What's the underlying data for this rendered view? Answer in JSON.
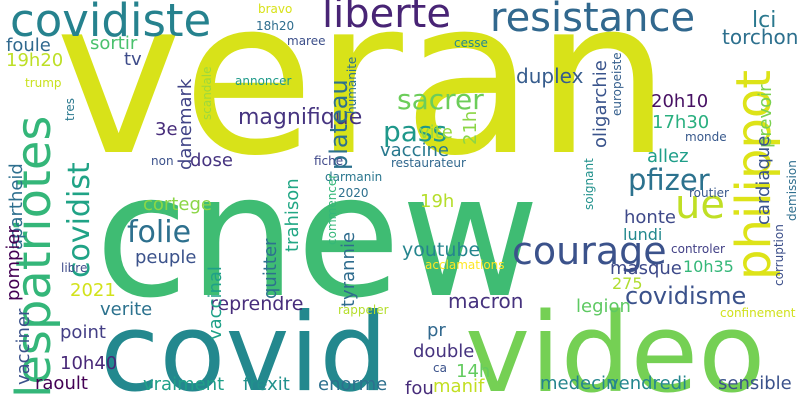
{
  "words": [
    {
      "text": "veran",
      "color": "#d8e219"
    },
    {
      "text": "cnew",
      "color": "#3fbc73"
    },
    {
      "text": "covid",
      "color": "#23888e"
    },
    {
      "text": "video",
      "color": "#75d054"
    },
    {
      "text": "covidiste",
      "color": "#26828e"
    },
    {
      "text": "liberte",
      "color": "#482475"
    },
    {
      "text": "resistance",
      "color": "#31688e"
    },
    {
      "text": "lespatriotes",
      "color": "#34b679"
    },
    {
      "text": "philippot",
      "color": "#dde318"
    },
    {
      "text": "ue",
      "color": "#c0df25"
    },
    {
      "text": "courage",
      "color": "#3b528b"
    },
    {
      "text": "covidist",
      "color": "#20a386"
    },
    {
      "text": "folie",
      "color": "#2d708e"
    },
    {
      "text": "pfizer",
      "color": "#2c728e"
    },
    {
      "text": "pass",
      "color": "#1f988b"
    },
    {
      "text": "sacrer",
      "color": "#6ccd5a"
    },
    {
      "text": "covidisme",
      "color": "#3b528b"
    },
    {
      "text": "magnifique",
      "color": "#463480"
    },
    {
      "text": "macron",
      "color": "#46327e"
    },
    {
      "text": "plateau",
      "color": "#2c718e"
    },
    {
      "text": "lci",
      "color": "#2a788e"
    },
    {
      "text": "torchon",
      "color": "#2d708e"
    },
    {
      "text": "duplex",
      "color": "#365c8d"
    },
    {
      "text": "20h10",
      "color": "#471063"
    },
    {
      "text": "19h",
      "color": "#b5de2b"
    },
    {
      "text": "reprendre",
      "color": "#472d7b"
    },
    {
      "text": "youtube",
      "color": "#25858e"
    },
    {
      "text": "tyrannie",
      "color": "#2f6c8e"
    },
    {
      "text": "vaccine",
      "color": "#29798e"
    },
    {
      "text": "foule",
      "color": "#30698e"
    },
    {
      "text": "sortir",
      "color": "#4ac16d"
    },
    {
      "text": "tv",
      "color": "#3e4c8a"
    },
    {
      "text": "19h20",
      "color": "#bddf26"
    },
    {
      "text": "danemark",
      "color": "#414487"
    },
    {
      "text": "apartheid",
      "color": "#2e6f8e"
    },
    {
      "text": "vite",
      "color": "#95d840"
    },
    {
      "text": "21h",
      "color": "#8bd646"
    },
    {
      "text": "3e",
      "color": "#472c7a"
    },
    {
      "text": "dose",
      "color": "#463480"
    },
    {
      "text": "cortege",
      "color": "#8bd646"
    },
    {
      "text": "trahison",
      "color": "#22a785"
    },
    {
      "text": "quitter",
      "color": "#2d718e"
    },
    {
      "text": "peuple",
      "color": "#3b528b"
    },
    {
      "text": "vaccinal",
      "color": "#1fa188"
    },
    {
      "text": "2021",
      "color": "#d2e21b"
    },
    {
      "text": "verite",
      "color": "#2c728e"
    },
    {
      "text": "pompier",
      "color": "#440154"
    },
    {
      "text": "point",
      "color": "#433e85"
    },
    {
      "text": "vacciner",
      "color": "#3b528b"
    },
    {
      "text": "10h40",
      "color": "#482878"
    },
    {
      "text": "raoult",
      "color": "#440154"
    },
    {
      "text": "vraiment",
      "color": "#1fa088"
    },
    {
      "text": "frexit",
      "color": "#21918c"
    },
    {
      "text": "enorme",
      "color": "#2d708e"
    },
    {
      "text": "manif",
      "color": "#c2df23"
    },
    {
      "text": "medecin",
      "color": "#25858e"
    },
    {
      "text": "vendredi",
      "color": "#24868e"
    },
    {
      "text": "sensible",
      "color": "#3b528b"
    },
    {
      "text": "fou",
      "color": "#472c7a"
    },
    {
      "text": "14h",
      "color": "#63cb5f"
    },
    {
      "text": "double",
      "color": "#46337f"
    },
    {
      "text": "pr",
      "color": "#31688e"
    },
    {
      "text": "legion",
      "color": "#5ec962"
    },
    {
      "text": "275",
      "color": "#b0dd2f"
    },
    {
      "text": "10h35",
      "color": "#35b779"
    },
    {
      "text": "masque",
      "color": "#3e4a89"
    },
    {
      "text": "lundi",
      "color": "#23898e"
    },
    {
      "text": "honte",
      "color": "#3e4989"
    },
    {
      "text": "allez",
      "color": "#1f9e89"
    },
    {
      "text": "17h30",
      "color": "#29af7f"
    },
    {
      "text": "oligarchie",
      "color": "#3a548c"
    },
    {
      "text": "prevoir",
      "color": "#7ad151"
    },
    {
      "text": "cardiaque",
      "color": "#3a548c"
    },
    {
      "text": "monde",
      "color": "#38598c"
    },
    {
      "text": "europeiste",
      "color": "#355f8d"
    },
    {
      "text": "soignant",
      "color": "#21918c"
    },
    {
      "text": "routier",
      "color": "#38588c"
    },
    {
      "text": "controler",
      "color": "#424086"
    },
    {
      "text": "corruption",
      "color": "#3c4f8a"
    },
    {
      "text": "demission",
      "color": "#2e6e8e"
    },
    {
      "text": "acclamations",
      "color": "#fde725"
    },
    {
      "text": "rappeler",
      "color": "#b5de2b"
    },
    {
      "text": "confinement",
      "color": "#d0e11c"
    },
    {
      "text": "fiche",
      "color": "#3f4889"
    },
    {
      "text": "restaurateur",
      "color": "#31688e"
    },
    {
      "text": "darmanin",
      "color": "#2a768e"
    },
    {
      "text": "2020",
      "color": "#2d708e"
    },
    {
      "text": "commencer",
      "color": "#35b779"
    },
    {
      "text": "libre",
      "color": "#3e4c8a"
    },
    {
      "text": "non",
      "color": "#3b518b"
    },
    {
      "text": "bravo",
      "color": "#d8e219"
    },
    {
      "text": "18h20",
      "color": "#2e6d8e"
    },
    {
      "text": "maree",
      "color": "#3c4f8a"
    },
    {
      "text": "cesse",
      "color": "#23898e"
    },
    {
      "text": "annoncer",
      "color": "#1f9a8a"
    },
    {
      "text": "humanite",
      "color": "#2c728e"
    },
    {
      "text": "scandale",
      "color": "#9dd93b"
    },
    {
      "text": "trump",
      "color": "#cae11f"
    },
    {
      "text": "tres",
      "color": "#2a788e"
    },
    {
      "text": "ca",
      "color": "#3b528b"
    }
  ]
}
